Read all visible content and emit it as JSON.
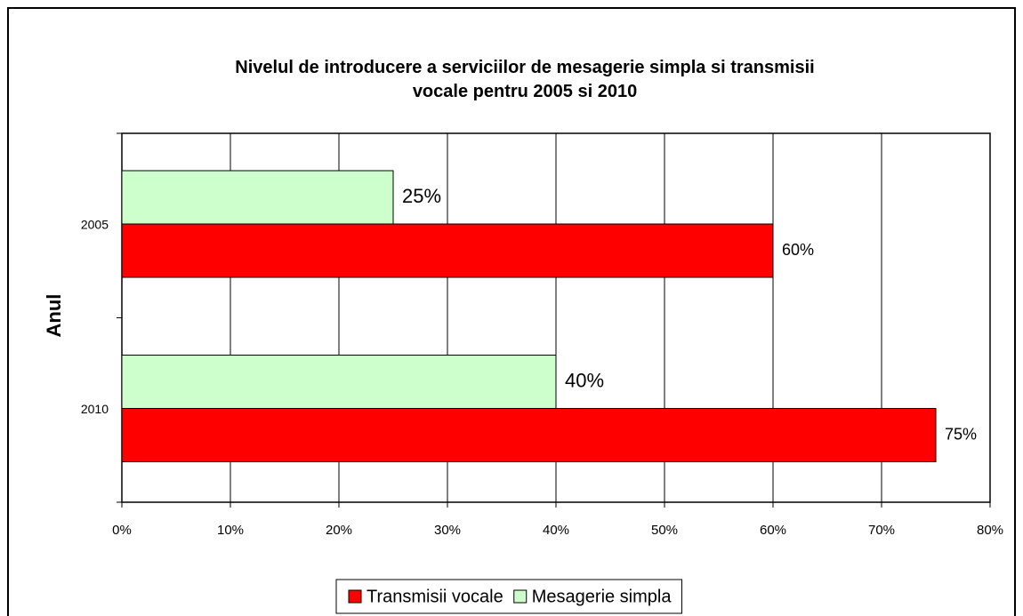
{
  "chart_data": {
    "type": "hbar",
    "title": "Nivelul de introducere a serviciilor de mesagerie simpla si transmisii vocale pentru 2005 si 2010",
    "ylabel": "Anul",
    "categories": [
      "2005",
      "2010"
    ],
    "series": [
      {
        "name": "Transmisii vocale",
        "color": "#ff0000",
        "values": [
          60,
          75
        ],
        "value_labels": [
          "60%",
          "75%"
        ]
      },
      {
        "name": "Mesagerie simpla",
        "color": "#ccffcc",
        "values": [
          25,
          40
        ],
        "value_labels": [
          "25%",
          "40%"
        ]
      }
    ],
    "xlim": [
      0,
      80
    ],
    "xticks": [
      {
        "value": 0,
        "label": "0%"
      },
      {
        "value": 10,
        "label": "10%"
      },
      {
        "value": 20,
        "label": "20%"
      },
      {
        "value": 30,
        "label": "30%"
      },
      {
        "value": 40,
        "label": "40%"
      },
      {
        "value": 50,
        "label": "50%"
      },
      {
        "value": 60,
        "label": "60%"
      },
      {
        "value": 70,
        "label": "70%"
      },
      {
        "value": 80,
        "label": "80%"
      }
    ],
    "grid": true,
    "legend": "bottom"
  }
}
